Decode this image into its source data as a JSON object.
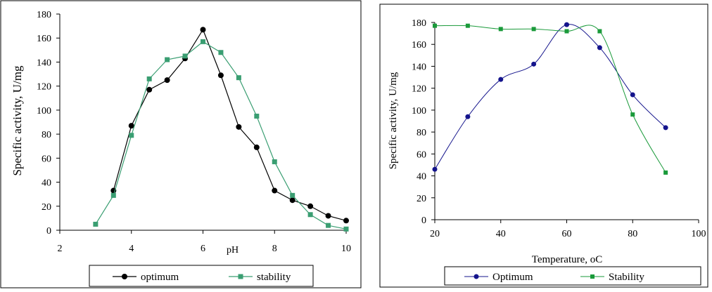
{
  "chart_data": [
    {
      "type": "line",
      "xlabel": "pH",
      "ylabel": "Specific activity,  U/mg",
      "xlim": [
        2,
        10
      ],
      "ylim": [
        0,
        180
      ],
      "xticks": [
        2,
        4,
        6,
        8,
        10
      ],
      "yticks": [
        0,
        20,
        40,
        60,
        80,
        100,
        120,
        140,
        160,
        180
      ],
      "grid": false,
      "legend_position": "bottom",
      "series": [
        {
          "name": "optimum",
          "color": "#000000",
          "marker": "circle",
          "x": [
            3.5,
            4,
            4.5,
            5,
            5.5,
            6,
            6.5,
            7,
            7.5,
            8,
            8.5,
            9,
            9.5,
            10
          ],
          "y": [
            33,
            87,
            117,
            125,
            143,
            167,
            129,
            86,
            69,
            33,
            25,
            20,
            12,
            8
          ]
        },
        {
          "name": "stability",
          "color": "#3a9e72",
          "marker": "square",
          "x": [
            3,
            3.5,
            4,
            4.5,
            5,
            5.5,
            6,
            6.5,
            7,
            7.5,
            8,
            8.5,
            9,
            9.5,
            10
          ],
          "y": [
            5,
            29,
            79,
            126,
            142,
            145,
            157,
            148,
            127,
            95,
            57,
            29,
            13,
            4,
            1
          ]
        }
      ]
    },
    {
      "type": "line",
      "xlabel": "Temperature, oC",
      "ylabel": "Specific activity, U/mg",
      "xlim": [
        20,
        100
      ],
      "ylim": [
        0,
        180
      ],
      "xticks": [
        20,
        40,
        60,
        80,
        100
      ],
      "yticks": [
        0,
        20,
        40,
        60,
        80,
        100,
        120,
        140,
        160,
        180
      ],
      "grid": false,
      "legend_position": "bottom",
      "series": [
        {
          "name": "Optimum",
          "color": "#14148c",
          "marker": "circle",
          "x": [
            20,
            30,
            40,
            50,
            60,
            70,
            80,
            90
          ],
          "y": [
            46,
            94,
            128,
            142,
            178,
            157,
            114,
            84
          ]
        },
        {
          "name": "Stability",
          "color": "#1a9a3a",
          "marker": "square",
          "x": [
            20,
            30,
            40,
            50,
            60,
            70,
            80,
            90
          ],
          "y": [
            177,
            177,
            174,
            174,
            172,
            172,
            96,
            43
          ]
        }
      ]
    }
  ]
}
